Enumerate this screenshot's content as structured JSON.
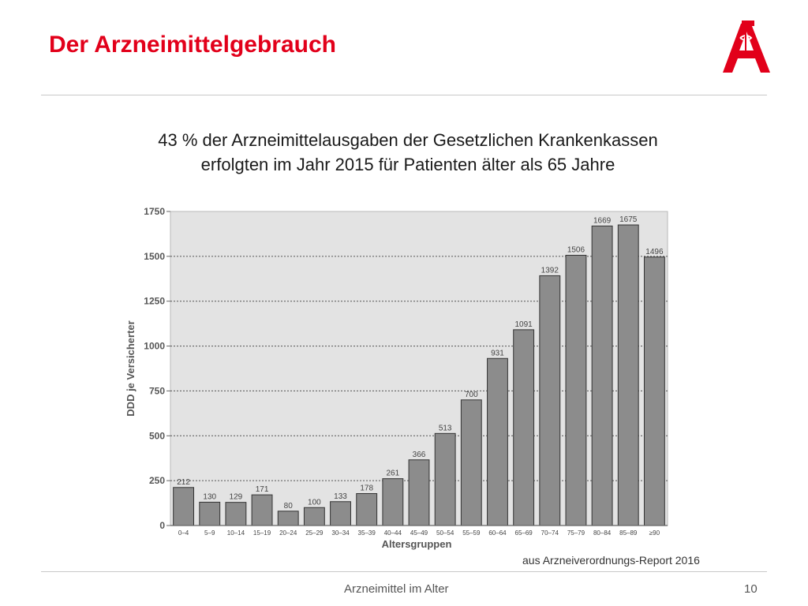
{
  "slide": {
    "title": "Der Arzneimittelgebrauch",
    "headline_line1": "43 % der Arzneimittelausgaben der Gesetzlichen Krankenkassen",
    "headline_line2": "erfolgten im Jahr 2015 für Patienten älter als 65 Jahre",
    "source": "aus Arzneiverordnungs-Report 2016",
    "footer": "Arzneimittel im  Alter",
    "page_number": "10"
  },
  "logo": {
    "icon": "apotheke-a-logo-icon",
    "color": "#e2001a"
  },
  "colors": {
    "accent": "#e2001a",
    "bar": "#8c8c8c",
    "plot_bg": "#e3e3e3"
  },
  "chart_data": {
    "type": "bar",
    "categories": [
      "0–4",
      "5–9",
      "10–14",
      "15–19",
      "20–24",
      "25–29",
      "30–34",
      "35–39",
      "40–44",
      "45–49",
      "50–54",
      "55–59",
      "60–64",
      "65–69",
      "70–74",
      "75–79",
      "80–84",
      "85–89",
      "≥90"
    ],
    "values": [
      212,
      130,
      129,
      171,
      80,
      100,
      133,
      178,
      261,
      366,
      513,
      700,
      931,
      1091,
      1392,
      1506,
      1669,
      1675,
      1496
    ],
    "data_labels": [
      "212",
      "130",
      "129",
      "171",
      "80",
      "100",
      "133",
      "178",
      "261",
      "366",
      "513",
      "700",
      "931",
      "1091",
      "1392",
      "1506",
      "1669",
      "1675",
      "1496"
    ],
    "xlabel": "Altersgruppen",
    "ylabel": "DDD je Versicherter",
    "ylim": [
      0,
      1750
    ],
    "yticks": [
      0,
      250,
      500,
      750,
      1000,
      1250,
      1500,
      1750
    ],
    "grid": "horizontal dotted",
    "legend": "none"
  }
}
